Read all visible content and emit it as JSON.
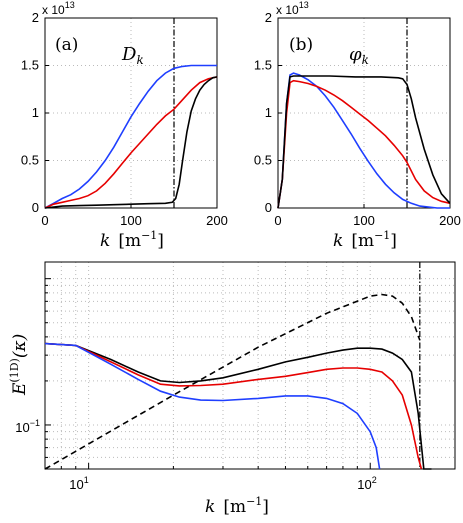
{
  "chart_data": [
    {
      "type": "line",
      "panel_label": "(a)",
      "symbol": "D",
      "symbol_sub": "k",
      "xlabel_k": "k",
      "xlabel_unit": "[m",
      "xlabel_exp": "−1",
      "xlabel_end": "]",
      "multiplier_base": "x 10",
      "multiplier_exp": "13",
      "xlim": [
        0,
        200
      ],
      "ylim": [
        0,
        2
      ],
      "xticks": [
        0,
        100,
        200
      ],
      "yticks": [
        0,
        0.5,
        1,
        1.5,
        2
      ],
      "ytick_labels": [
        "0",
        "0.5",
        "1",
        "1.5",
        "2"
      ],
      "vline": 150,
      "series": [
        {
          "color": "#1f3fff",
          "x": [
            0,
            10,
            20,
            30,
            40,
            50,
            60,
            70,
            80,
            90,
            100,
            110,
            120,
            130,
            140,
            150,
            160,
            170,
            180,
            190,
            200
          ],
          "y": [
            0,
            0.05,
            0.1,
            0.14,
            0.2,
            0.28,
            0.38,
            0.5,
            0.64,
            0.8,
            0.96,
            1.1,
            1.23,
            1.34,
            1.42,
            1.47,
            1.49,
            1.5,
            1.5,
            1.5,
            1.5
          ]
        },
        {
          "color": "#e60000",
          "x": [
            0,
            10,
            20,
            30,
            40,
            50,
            60,
            70,
            80,
            90,
            100,
            110,
            120,
            130,
            140,
            150,
            160,
            170,
            180,
            190,
            200
          ],
          "y": [
            0,
            0.04,
            0.06,
            0.08,
            0.1,
            0.13,
            0.18,
            0.26,
            0.36,
            0.47,
            0.58,
            0.68,
            0.78,
            0.88,
            0.97,
            1.04,
            1.14,
            1.24,
            1.32,
            1.36,
            1.38
          ]
        },
        {
          "color": "#000000",
          "x": [
            0,
            20,
            40,
            60,
            80,
            100,
            120,
            140,
            148,
            152,
            156,
            160,
            165,
            170,
            175,
            180,
            185,
            190,
            195,
            200
          ],
          "y": [
            0,
            0.02,
            0.025,
            0.03,
            0.035,
            0.04,
            0.045,
            0.05,
            0.06,
            0.1,
            0.25,
            0.5,
            0.8,
            1.02,
            1.15,
            1.24,
            1.3,
            1.34,
            1.37,
            1.38
          ]
        }
      ]
    },
    {
      "type": "line",
      "panel_label": "(b)",
      "symbol": "φ",
      "symbol_sub": "k",
      "xlabel_k": "k",
      "xlabel_unit": "[m",
      "xlabel_exp": "−1",
      "xlabel_end": "]",
      "multiplier_base": "x 10",
      "multiplier_exp": "13",
      "xlim": [
        0,
        200
      ],
      "ylim": [
        0,
        2
      ],
      "xticks": [
        0,
        100,
        200
      ],
      "yticks": [
        0,
        0.5,
        1,
        1.5,
        2
      ],
      "ytick_labels": [
        "0",
        "0.5",
        "1",
        "1.5",
        "2"
      ],
      "vline": 150,
      "series": [
        {
          "color": "#1f3fff",
          "x": [
            0,
            5,
            10,
            14,
            18,
            25,
            35,
            45,
            55,
            65,
            75,
            85,
            95,
            105,
            115,
            125,
            135,
            145,
            155,
            165,
            175,
            185,
            195,
            200
          ],
          "y": [
            0,
            0.3,
            1.1,
            1.4,
            1.42,
            1.4,
            1.35,
            1.28,
            1.18,
            1.06,
            0.92,
            0.78,
            0.63,
            0.49,
            0.36,
            0.25,
            0.16,
            0.09,
            0.05,
            0.02,
            0.01,
            0,
            0,
            0
          ]
        },
        {
          "color": "#e60000",
          "x": [
            0,
            5,
            10,
            14,
            18,
            25,
            35,
            45,
            55,
            65,
            75,
            85,
            95,
            105,
            115,
            125,
            135,
            145,
            150,
            160,
            170,
            180,
            190,
            200
          ],
          "y": [
            0,
            0.3,
            1.0,
            1.32,
            1.34,
            1.33,
            1.31,
            1.28,
            1.24,
            1.19,
            1.13,
            1.06,
            0.99,
            0.92,
            0.84,
            0.76,
            0.66,
            0.55,
            0.48,
            0.3,
            0.18,
            0.11,
            0.07,
            0.05
          ]
        },
        {
          "color": "#000000",
          "x": [
            0,
            5,
            10,
            14,
            18,
            30,
            60,
            90,
            120,
            140,
            145,
            150,
            155,
            160,
            170,
            180,
            190,
            200
          ],
          "y": [
            0,
            0.3,
            1.1,
            1.38,
            1.39,
            1.39,
            1.39,
            1.38,
            1.38,
            1.37,
            1.36,
            1.3,
            1.15,
            0.95,
            0.62,
            0.35,
            0.15,
            0.05
          ]
        }
      ]
    },
    {
      "type": "line",
      "scale": "loglog",
      "ylabel_E": "E",
      "ylabel_sup": "(1D)",
      "ylabel_arg": "(κ)",
      "xlabel_k": "k",
      "xlabel_unit": "[m",
      "xlabel_exp": "−1",
      "xlabel_end": "]",
      "xlim": [
        7,
        200
      ],
      "ylim": [
        0.05,
        1.3
      ],
      "xtick_base": "10",
      "xtick_exps": [
        "1",
        "2"
      ],
      "ytick_base": "10",
      "ytick_exps": [
        "−1"
      ],
      "vline": 150,
      "series": [
        {
          "color": "#000000",
          "dash": "6,4",
          "x": [
            7,
            20,
            40,
            70,
            100,
            110,
            120,
            130,
            140,
            150
          ],
          "y": [
            0.05,
            0.16,
            0.34,
            0.58,
            0.76,
            0.78,
            0.76,
            0.68,
            0.55,
            0.38
          ]
        },
        {
          "color": "#000000",
          "x": [
            7,
            9,
            12,
            15,
            18,
            21,
            25,
            30,
            40,
            50,
            60,
            70,
            80,
            90,
            100,
            110,
            120,
            130,
            140,
            148,
            155,
            165
          ],
          "y": [
            0.36,
            0.35,
            0.28,
            0.23,
            0.2,
            0.195,
            0.2,
            0.21,
            0.24,
            0.27,
            0.29,
            0.31,
            0.325,
            0.335,
            0.335,
            0.33,
            0.31,
            0.28,
            0.23,
            0.12,
            0.05,
            0.03
          ]
        },
        {
          "color": "#e60000",
          "x": [
            7,
            9,
            12,
            15,
            18,
            21,
            25,
            30,
            40,
            50,
            60,
            70,
            80,
            90,
            100,
            110,
            120,
            130,
            140,
            148,
            152
          ],
          "y": [
            0.36,
            0.35,
            0.27,
            0.22,
            0.19,
            0.185,
            0.186,
            0.19,
            0.205,
            0.215,
            0.228,
            0.24,
            0.245,
            0.245,
            0.24,
            0.23,
            0.2,
            0.16,
            0.1,
            0.06,
            0.04
          ]
        },
        {
          "color": "#1f3fff",
          "x": [
            7,
            9,
            12,
            15,
            18,
            21,
            25,
            30,
            40,
            50,
            60,
            70,
            80,
            90,
            100,
            105,
            108
          ],
          "y": [
            0.36,
            0.35,
            0.26,
            0.205,
            0.17,
            0.155,
            0.148,
            0.147,
            0.152,
            0.158,
            0.158,
            0.152,
            0.14,
            0.12,
            0.09,
            0.07,
            0.05
          ]
        }
      ]
    }
  ]
}
